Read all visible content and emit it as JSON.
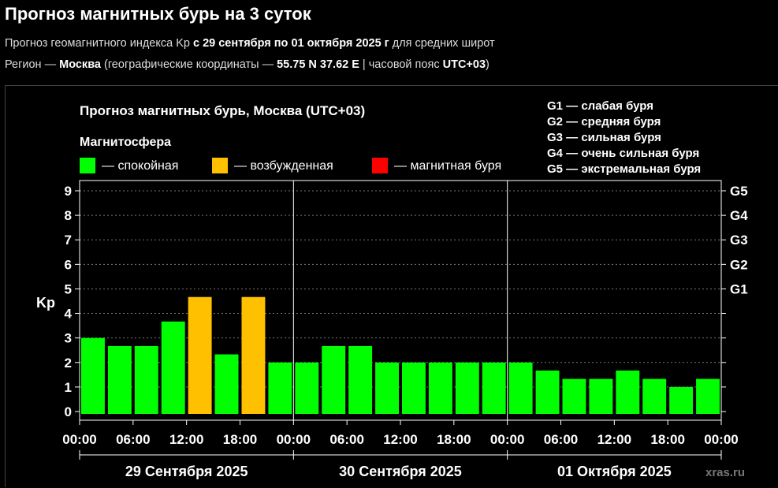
{
  "page": {
    "title": "Прогноз магнитных бурь на 3 суток",
    "line1": {
      "prefix": "Прогноз геомагнитного индекса Kp ",
      "dates": "с 29 сентября по 01 октября 2025 г",
      "suffix": " для средних широт"
    },
    "line2": {
      "prefix": "Регион — ",
      "region": "Москва",
      "mid": " (географические координаты — ",
      "coords": "55.75 N 37.62 E",
      "mid2": " | часовой пояс ",
      "tz": "UTC+03",
      "suffix": ")"
    }
  },
  "chart_data": {
    "type": "bar",
    "title": "Прогноз магнитных бурь, Москва (UTC+03)",
    "legend_title": "Магнитосфера",
    "legend": [
      {
        "label": "— спокойная",
        "color": "#00ff00"
      },
      {
        "label": "— возбужденная",
        "color": "#ffc000"
      },
      {
        "label": "— магнитная буря",
        "color": "#ff0000"
      }
    ],
    "storm_scale": [
      "G1 — слабая буря",
      "G2 — средняя буря",
      "G3 — сильная буря",
      "G4 — очень сильная буря",
      "G5 — экстремальная буря"
    ],
    "ylabel": "Kp",
    "ylim": [
      0,
      9
    ],
    "yticks": [
      "0",
      "1",
      "2",
      "3",
      "4",
      "5",
      "6",
      "7",
      "8",
      "9"
    ],
    "right_ticks": [
      {
        "label": "G1",
        "value": 5
      },
      {
        "label": "G2",
        "value": 6
      },
      {
        "label": "G3",
        "value": 7
      },
      {
        "label": "G4",
        "value": 8
      },
      {
        "label": "G5",
        "value": 9
      }
    ],
    "xtick_labels": [
      "00:00",
      "06:00",
      "12:00",
      "18:00",
      "00:00",
      "06:00",
      "12:00",
      "18:00",
      "00:00",
      "06:00",
      "12:00",
      "18:00",
      "00:00"
    ],
    "days": [
      "29 Сентября 2025",
      "30 Сентября 2025",
      "01 Октября 2025"
    ],
    "values": [
      3.0,
      2.67,
      2.67,
      3.67,
      4.67,
      2.33,
      4.67,
      2.0,
      2.0,
      2.67,
      2.67,
      2.0,
      2.0,
      2.0,
      2.0,
      2.0,
      2.0,
      1.67,
      1.33,
      1.33,
      1.67,
      1.33,
      1.0,
      1.33
    ],
    "colors": [
      "#00ff00",
      "#00ff00",
      "#00ff00",
      "#00ff00",
      "#ffc000",
      "#00ff00",
      "#ffc000",
      "#00ff00",
      "#00ff00",
      "#00ff00",
      "#00ff00",
      "#00ff00",
      "#00ff00",
      "#00ff00",
      "#00ff00",
      "#00ff00",
      "#00ff00",
      "#00ff00",
      "#00ff00",
      "#00ff00",
      "#00ff00",
      "#00ff00",
      "#00ff00",
      "#00ff00"
    ],
    "grid": true,
    "watermark": "xras.ru"
  }
}
